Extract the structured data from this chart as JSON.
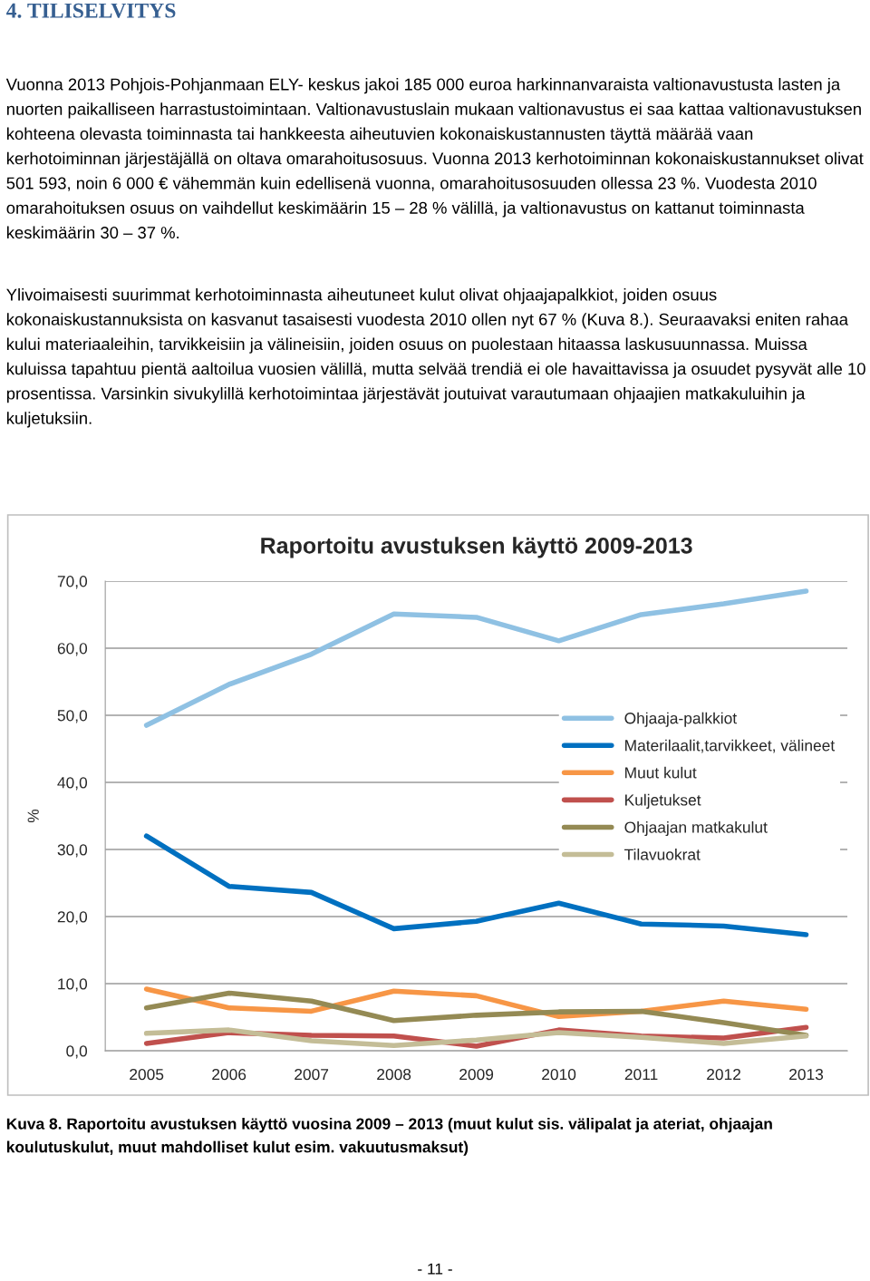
{
  "chart_data": {
    "type": "line",
    "title": "Raportoitu avustuksen käyttö 2009-2013",
    "ylabel": "%",
    "categories": [
      "2005",
      "2006",
      "2007",
      "2008",
      "2009",
      "2010",
      "2011",
      "2012",
      "2013"
    ],
    "series": [
      {
        "name": "Ohjaaja-palkkiot",
        "color": "#8fc1e3",
        "values": [
          48.5,
          54.6,
          59.1,
          65.1,
          64.6,
          61.1,
          65.0,
          66.6,
          68.5
        ]
      },
      {
        "name": "Materilaalit,tarvikkeet, välineet",
        "color": "#0070c0",
        "values": [
          32.0,
          24.5,
          23.6,
          18.2,
          19.3,
          22.0,
          18.9,
          18.6,
          17.3
        ]
      },
      {
        "name": "Muut kulut",
        "color": "#f79646",
        "values": [
          9.2,
          6.4,
          5.9,
          8.9,
          8.2,
          5.1,
          5.9,
          7.4,
          6.2
        ]
      },
      {
        "name": "Kuljetukset",
        "color": "#c0504d",
        "values": [
          1.1,
          2.7,
          2.3,
          2.2,
          0.7,
          3.1,
          2.2,
          1.9,
          3.5
        ]
      },
      {
        "name": "Ohjaajan matkakulut",
        "color": "#948a54",
        "values": [
          6.4,
          8.6,
          7.4,
          4.5,
          5.3,
          5.8,
          5.9,
          4.2,
          2.3
        ]
      },
      {
        "name": "Tilavuokrat",
        "color": "#c4bd97",
        "values": [
          2.6,
          3.1,
          1.5,
          0.8,
          1.6,
          2.7,
          2.0,
          1.1,
          2.2
        ]
      }
    ],
    "ylim": [
      0,
      70
    ],
    "yticks": [
      {
        "value": 0,
        "label": "0,0"
      },
      {
        "value": 10,
        "label": "10,0"
      },
      {
        "value": 20,
        "label": "20,0"
      },
      {
        "value": 30,
        "label": "30,0"
      },
      {
        "value": 40,
        "label": "40,0"
      },
      {
        "value": 50,
        "label": "50,0"
      },
      {
        "value": 60,
        "label": "60,0"
      },
      {
        "value": 70,
        "label": "70,0"
      }
    ],
    "grid": "y",
    "legend": "right",
    "marker": "none",
    "line_style": "solid",
    "annotations": [
      "4. TILISELVITYS",
      "Vuonna 2013 Pohjois-Pohjanmaan ELY- keskus jakoi 185 000 euroa harkinnanvaraista valtionavustusta lasten ja nuorten paikalliseen harrastustoimintaan. Valtionavustuslain mukaan valtionavustus ei saa kattaa valtionavustuksen kohteena olevasta toiminnasta tai hankkeesta aiheutuvien kokonaiskustannusten täyttä määrää vaan kerhotoiminnan järjestäjällä on oltava omarahoitusosuus. Vuonna 2013 kerhotoiminnan kokonaiskustannukset olivat 501 593, noin 6 000 € vähemmän kuin edellisenä vuonna, omarahoitusosuuden ollessa 23 %. Vuodesta 2010 omarahoituksen osuus on vaihdellut keskimäärin 15 – 28 % välillä, ja valtionavustus on kattanut toiminnasta keskimäärin 30 – 37 %.",
      "Ylivoimaisesti suurimmat kerhotoiminnasta aiheutuneet kulut olivat ohjaajapalkkiot, joiden osuus kokonaiskustannuksista on kasvanut tasaisesti vuodesta 2010 ollen nyt 67 % (Kuva 8.). Seuraavaksi eniten rahaa kului materiaaleihin, tarvikkeisiin ja välineisiin, joiden osuus on puolestaan hitaassa laskusuunnassa. Muissa kuluissa tapahtuu pientä aaltoilua vuosien välillä, mutta selvää trendiä ei ole havaittavissa ja osuudet pysyvät alle 10 prosentissa. Varsinkin sivukylillä kerhotoimintaa järjestävät joutuivat varautumaan ohjaajien matkakuluihin ja kuljetuksiin.",
      "Kuva 8. Raportoitu avustuksen käyttö vuosina 2009 – 2013 (muut kulut sis. välipalat ja ateriat, ohjaajan koulutuskulut, muut mahdolliset kulut esim. vakuutusmaksut)",
      "- 11 -"
    ]
  }
}
